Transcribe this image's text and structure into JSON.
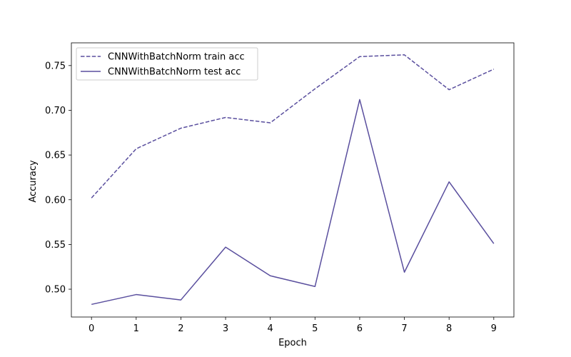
{
  "chart_data": {
    "type": "line",
    "title": "",
    "xlabel": "Epoch",
    "ylabel": "Accuracy",
    "x": [
      0,
      1,
      2,
      3,
      4,
      5,
      6,
      7,
      8,
      9
    ],
    "xlim": [
      -0.45,
      9.45
    ],
    "ylim": [
      0.4689,
      0.7754
    ],
    "xticks": [
      0,
      1,
      2,
      3,
      4,
      5,
      6,
      7,
      8,
      9
    ],
    "xtick_labels": [
      "0",
      "1",
      "2",
      "3",
      "4",
      "5",
      "6",
      "7",
      "8",
      "9"
    ],
    "yticks": [
      0.5,
      0.55,
      0.6,
      0.65,
      0.7,
      0.75
    ],
    "ytick_labels": [
      "0.50",
      "0.55",
      "0.60",
      "0.65",
      "0.70",
      "0.75"
    ],
    "grid": false,
    "legend_position": "top-left",
    "series": [
      {
        "name": "CNNWithBatchNorm train acc",
        "style": "dashed",
        "color": "#5a4f9e",
        "values": [
          0.602,
          0.657,
          0.68,
          0.692,
          0.686,
          0.724,
          0.76,
          0.762,
          0.723,
          0.746
        ]
      },
      {
        "name": "CNNWithBatchNorm test acc",
        "style": "solid",
        "color": "#5a4f9e",
        "values": [
          0.483,
          0.494,
          0.488,
          0.547,
          0.515,
          0.503,
          0.712,
          0.519,
          0.62,
          0.551
        ]
      }
    ]
  }
}
